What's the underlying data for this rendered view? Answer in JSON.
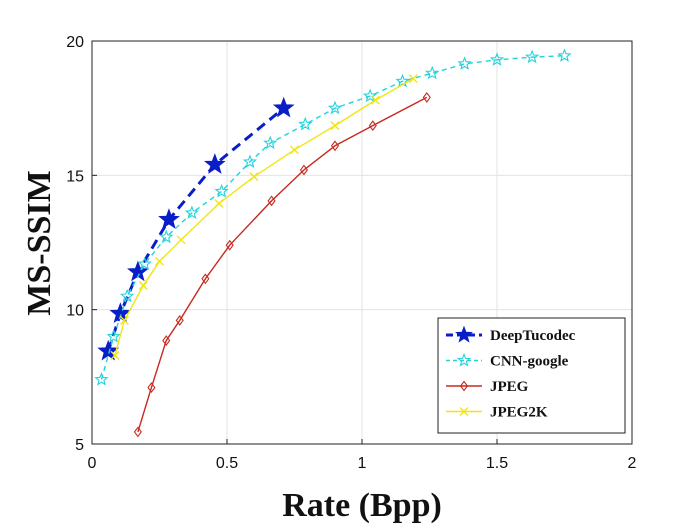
{
  "chart_data": {
    "type": "line",
    "title": "",
    "xlabel": "Rate (Bpp)",
    "ylabel": "MS-SSIM",
    "xlim": [
      0,
      2
    ],
    "ylim": [
      5,
      20
    ],
    "xticks": [
      0,
      0.5,
      1,
      1.5,
      2
    ],
    "xtick_labels": [
      "0",
      "0.5",
      "1",
      "1.5",
      "2"
    ],
    "yticks": [
      5,
      10,
      15,
      20
    ],
    "ytick_labels": [
      "5",
      "10",
      "15",
      "20"
    ],
    "grid": true,
    "legend_position": "bottom-right",
    "series": [
      {
        "name": "DeepTucodec",
        "color": "#0a1ec8",
        "line_style": "dashed",
        "marker": "star-filled",
        "x": [
          0.06,
          0.105,
          0.17,
          0.285,
          0.455,
          0.71
        ],
        "y": [
          8.45,
          9.85,
          11.4,
          13.35,
          15.4,
          17.5
        ]
      },
      {
        "name": "CNN-google",
        "color": "#22d3dc",
        "line_style": "dashed",
        "marker": "star-open",
        "x": [
          0.035,
          0.08,
          0.13,
          0.195,
          0.275,
          0.37,
          0.48,
          0.585,
          0.66,
          0.79,
          0.9,
          1.03,
          1.15,
          1.26,
          1.38,
          1.5,
          1.63,
          1.75
        ],
        "y": [
          7.4,
          9.0,
          10.5,
          11.7,
          12.7,
          13.6,
          14.4,
          15.5,
          16.2,
          16.9,
          17.5,
          17.95,
          18.5,
          18.8,
          19.15,
          19.3,
          19.4,
          19.45
        ]
      },
      {
        "name": "JPEG",
        "color": "#c8281e",
        "line_style": "solid",
        "marker": "diamond-open",
        "x": [
          0.17,
          0.22,
          0.275,
          0.325,
          0.42,
          0.51,
          0.665,
          0.785,
          0.9,
          1.04,
          1.24
        ],
        "y": [
          5.45,
          7.1,
          8.85,
          9.6,
          11.15,
          12.4,
          14.05,
          15.2,
          16.1,
          16.85,
          17.9
        ]
      },
      {
        "name": "JPEG2K",
        "color": "#f0e612",
        "line_style": "solid",
        "marker": "x",
        "x": [
          0.085,
          0.12,
          0.19,
          0.25,
          0.33,
          0.47,
          0.6,
          0.75,
          0.9,
          1.05,
          1.19
        ],
        "y": [
          8.3,
          9.6,
          10.9,
          11.8,
          12.6,
          13.95,
          14.95,
          15.95,
          16.85,
          17.8,
          18.6
        ]
      }
    ]
  }
}
